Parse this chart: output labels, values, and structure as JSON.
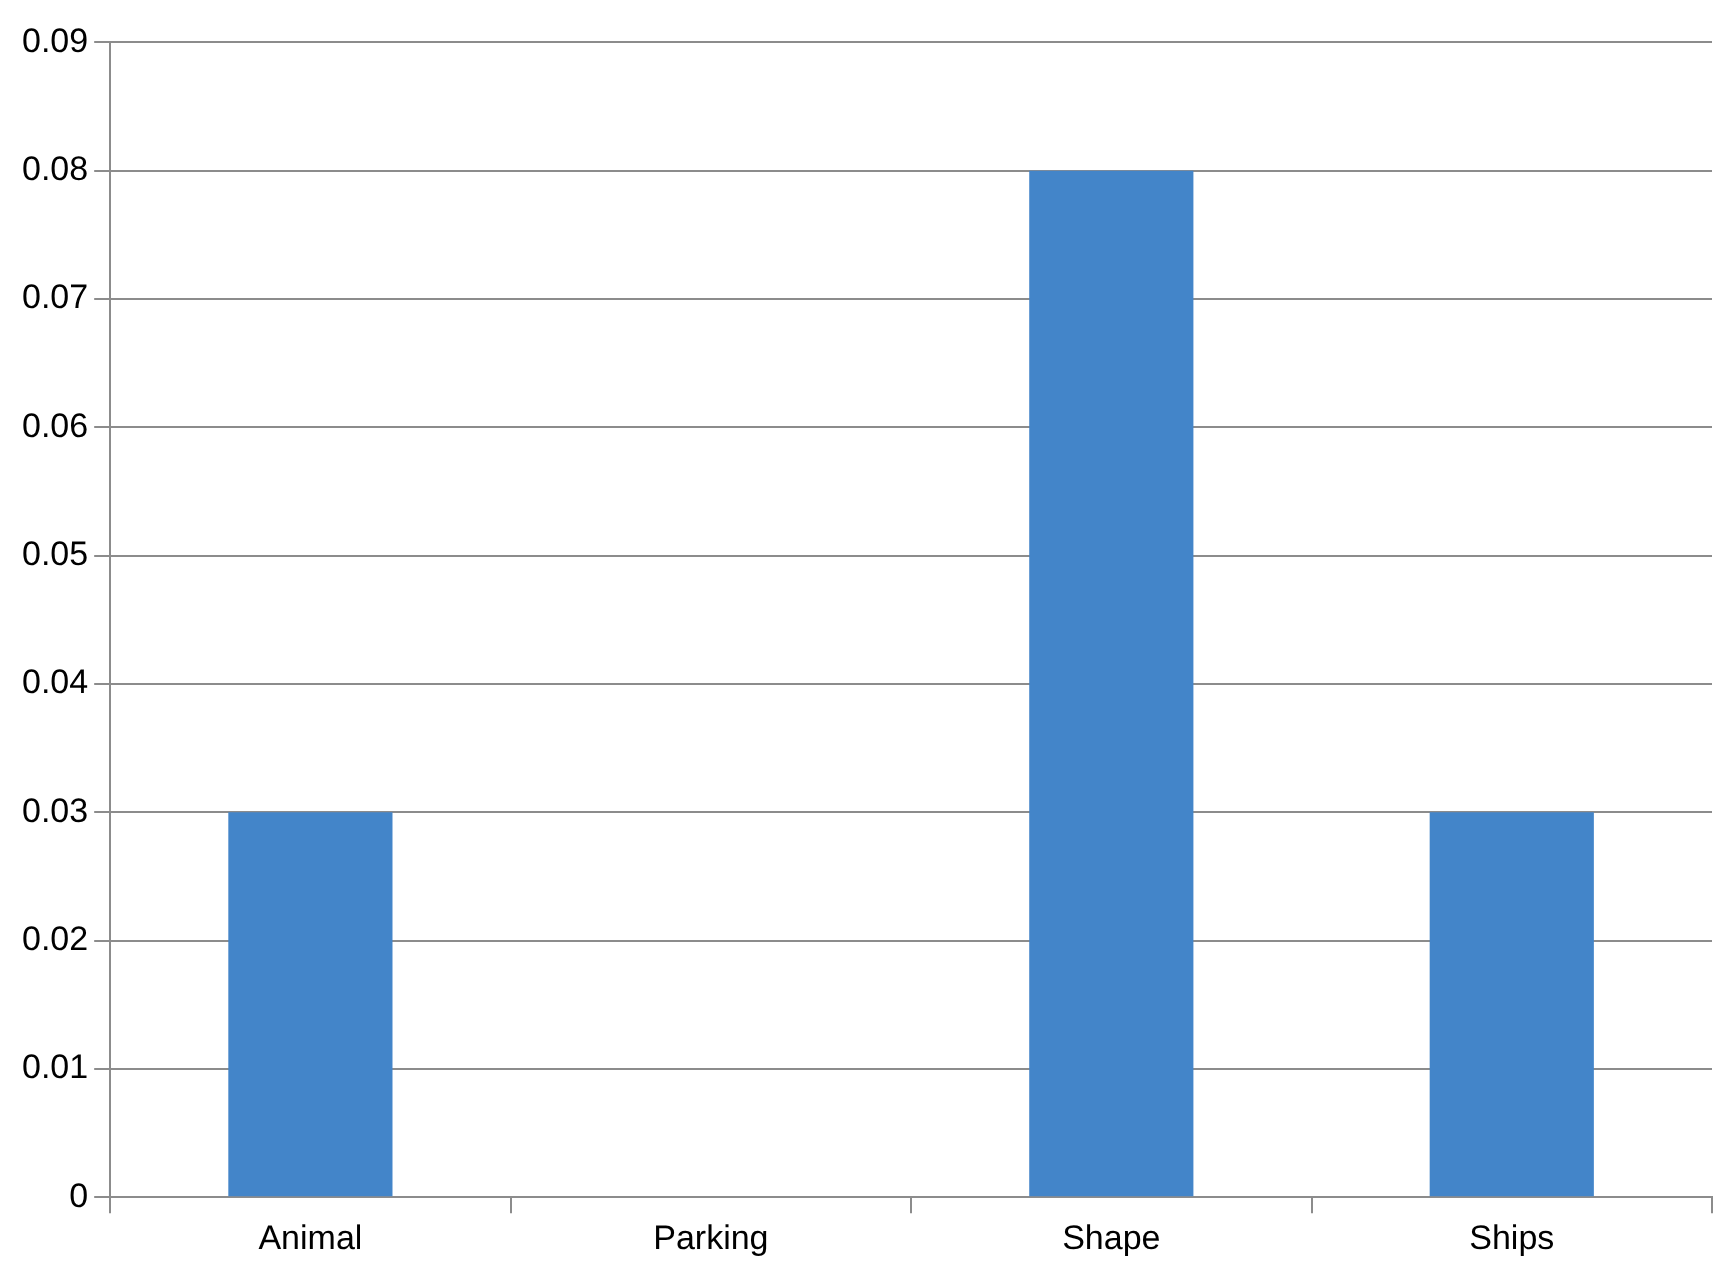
{
  "chart_data": {
    "type": "bar",
    "categories": [
      "Animal",
      "Parking",
      "Shape",
      "Ships"
    ],
    "values": [
      0.03,
      0,
      0.08,
      0.03
    ],
    "color": "#4385c9",
    "ylim": [
      0,
      0.09
    ],
    "yticks": [
      0,
      0.01,
      0.02,
      0.03,
      0.04,
      0.05,
      0.06,
      0.07,
      0.08,
      0.09
    ],
    "grid": "y",
    "legend": false
  }
}
